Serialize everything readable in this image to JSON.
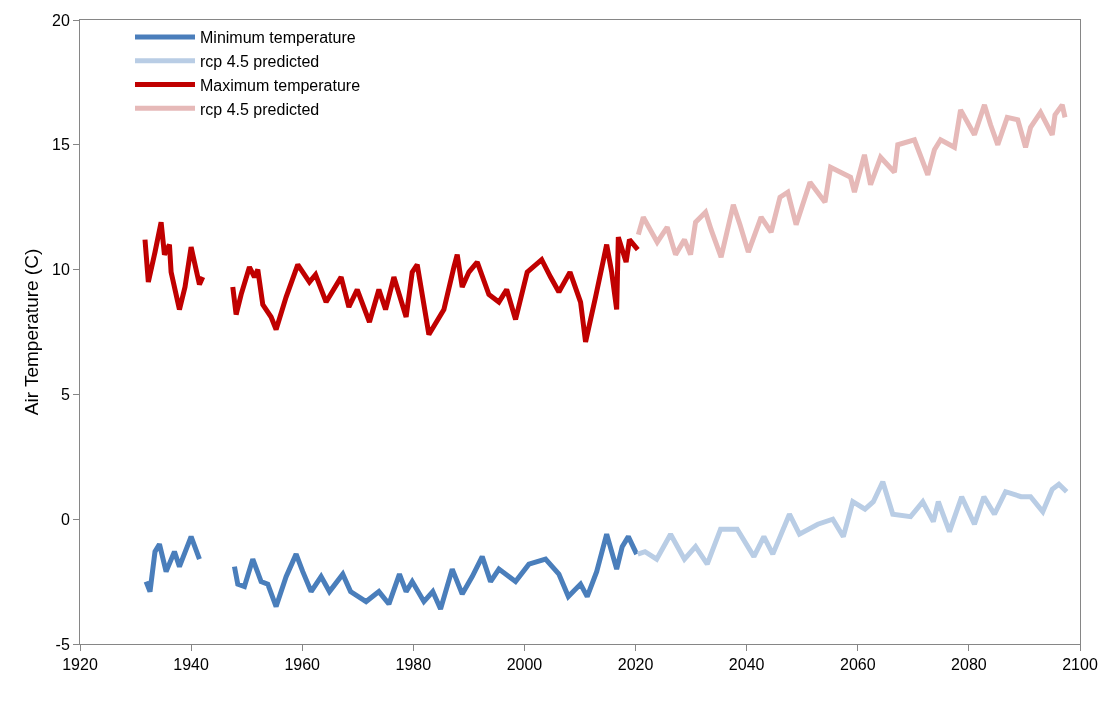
{
  "chart_data": {
    "type": "line",
    "ylabel": "Air Temperature (C)",
    "xlim": [
      1920,
      2100
    ],
    "xticks": [
      1920,
      1940,
      1960,
      1980,
      2000,
      2020,
      2040,
      2060,
      2080,
      2100
    ],
    "ylim": [
      -5,
      20
    ],
    "yticks": [
      -5,
      0,
      5,
      10,
      15,
      20
    ],
    "grid": false,
    "legend": "top left",
    "marker": "none",
    "line_style": "solid",
    "series": [
      {
        "name": "Minimum temperature",
        "color": "#4a7ebb",
        "x": [
          1931.9,
          1932.6,
          1933.5,
          1934.3,
          1935.5,
          1937.0,
          1937.9,
          1940.0,
          1941.5,
          1945,
          1947.8,
          1948.4,
          1949.6,
          1951.1,
          1952.6,
          1953.8,
          1955.3,
          1957.1,
          1958.9,
          1960.1,
          1961.6,
          1963.4,
          1964.9,
          1967.3,
          1968.7,
          1971.5,
          1973.8,
          1975.6,
          1977.5,
          1978.7,
          1979.8,
          1981.9,
          1983.5,
          1984.9,
          1987.0,
          1988.8,
          1990.6,
          1992.4,
          1993.9,
          1995.4,
          1998.4,
          2000.8,
          2003.8,
          2006.2,
          2007.9,
          2010.1,
          2011.3,
          2013.0,
          2014.8,
          2016.6,
          2017.6,
          2018.7,
          2020.2
        ],
        "values": [
          -2.5,
          -2.9,
          -1.3,
          -1.0,
          -2.1,
          -1.3,
          -1.9,
          -0.7,
          -1.6,
          null,
          -1.9,
          -2.6,
          -2.7,
          -1.6,
          -2.5,
          -2.6,
          -3.5,
          -2.3,
          -1.4,
          -2.1,
          -2.9,
          -2.3,
          -2.9,
          -2.2,
          -2.9,
          -3.3,
          -2.9,
          -3.4,
          -2.2,
          -2.9,
          -2.5,
          -3.3,
          -2.9,
          -3.6,
          -2.0,
          -3.0,
          -2.3,
          -1.5,
          -2.5,
          -2.0,
          -2.5,
          -1.8,
          -1.6,
          -2.2,
          -3.1,
          -2.6,
          -3.1,
          -2.1,
          -0.6,
          -2.0,
          -1.1,
          -0.7,
          -1.4
        ]
      },
      {
        "name": "rcp 4.5 predicted",
        "color": "#b9cde5",
        "x": [
          2020.4,
          2021.7,
          2023.8,
          2026.3,
          2028.8,
          2030.8,
          2032.9,
          2035.3,
          2038.3,
          2041.3,
          2043.1,
          2044.7,
          2047.7,
          2049.5,
          2052.8,
          2055.5,
          2057.4,
          2059.1,
          2061.3,
          2062.8,
          2064.5,
          2066.3,
          2069.5,
          2071.7,
          2073.6,
          2074.5,
          2076.5,
          2078.7,
          2081.0,
          2082.7,
          2084.6,
          2086.6,
          2089.4,
          2091.1,
          2093.3,
          2095.0,
          2096.2,
          2097.6
        ],
        "values": [
          -1.4,
          -1.3,
          -1.6,
          -0.6,
          -1.6,
          -1.1,
          -1.8,
          -0.4,
          -0.4,
          -1.5,
          -0.7,
          -1.4,
          0.2,
          -0.6,
          -0.2,
          0.0,
          -0.7,
          0.7,
          0.4,
          0.7,
          1.5,
          0.2,
          0.1,
          0.7,
          -0.1,
          0.7,
          -0.5,
          0.9,
          -0.2,
          0.9,
          0.2,
          1.1,
          0.9,
          0.9,
          0.3,
          1.2,
          1.4,
          1.1
        ]
      },
      {
        "name": "Maximum temperature",
        "color": "#c00000",
        "x": [
          1931.7,
          1932.3,
          1933.5,
          1934.6,
          1935.2,
          1936.1,
          1936.4,
          1937.9,
          1938.9,
          1940.0,
          1941.5,
          1942.1,
          1945,
          1947.5,
          1948.1,
          1949.0,
          1950.5,
          1951.4,
          1952.0,
          1952.9,
          1954.4,
          1955.3,
          1957.1,
          1959.2,
          1961.3,
          1962.4,
          1964.3,
          1967.0,
          1968.4,
          1969.9,
          1972.1,
          1973.8,
          1975.0,
          1976.5,
          1978.7,
          1979.8,
          1980.7,
          1982.8,
          1985.5,
          1987.3,
          1987.9,
          1988.8,
          1990.0,
          1991.5,
          1993.6,
          1995.4,
          1996.8,
          1998.4,
          2000.5,
          2003.1,
          2004.7,
          2006.2,
          2008.2,
          2010.1,
          2011.0,
          2012.8,
          2014.8,
          2015.7,
          2016.6,
          2016.9,
          2018.3,
          2018.9,
          2020.4
        ],
        "values": [
          11.2,
          9.5,
          10.7,
          11.9,
          10.6,
          11.0,
          9.9,
          8.4,
          9.3,
          10.9,
          9.4,
          9.7,
          null,
          9.3,
          8.2,
          9.0,
          10.1,
          9.7,
          10.0,
          8.6,
          8.1,
          7.6,
          8.9,
          10.2,
          9.5,
          9.8,
          8.7,
          9.7,
          8.5,
          9.2,
          7.9,
          9.2,
          8.4,
          9.7,
          8.1,
          9.9,
          10.2,
          7.4,
          8.4,
          10.1,
          10.6,
          9.3,
          9.9,
          10.3,
          9.0,
          8.7,
          9.2,
          8.0,
          9.9,
          10.4,
          9.7,
          9.1,
          9.9,
          8.7,
          7.1,
          8.9,
          11.0,
          9.9,
          8.4,
          11.3,
          10.3,
          11.2,
          10.8
        ]
      },
      {
        "name": "rcp 4.5 predicted",
        "color": "#e6b9b8",
        "x": [
          2020.5,
          2021.4,
          2023.9,
          2025.7,
          2027.2,
          2028.8,
          2029.9,
          2030.8,
          2032.6,
          2033.6,
          2035.4,
          2037.6,
          2038.8,
          2040.3,
          2042.6,
          2044.4,
          2046.0,
          2047.4,
          2048.9,
          2051.4,
          2054.1,
          2055.1,
          2058.7,
          2059.4,
          2061.2,
          2062.3,
          2064.1,
          2066.6,
          2067.2,
          2070.2,
          2072.6,
          2073.8,
          2074.9,
          2077.4,
          2078.5,
          2081.0,
          2082.8,
          2083.9,
          2085.2,
          2086.9,
          2088.8,
          2090.2,
          2091.1,
          2092.9,
          2095.0,
          2095.5,
          2096.8,
          2097.3
        ],
        "values": [
          11.4,
          12.1,
          11.1,
          11.7,
          10.6,
          11.2,
          10.6,
          11.9,
          12.3,
          11.6,
          10.5,
          12.6,
          11.8,
          10.7,
          12.1,
          11.5,
          12.9,
          13.1,
          11.8,
          13.5,
          12.7,
          14.1,
          13.7,
          13.1,
          14.6,
          13.4,
          14.5,
          13.9,
          15.0,
          15.2,
          13.8,
          14.8,
          15.2,
          14.9,
          16.4,
          15.4,
          16.6,
          15.8,
          15.0,
          16.1,
          16.0,
          14.9,
          15.7,
          16.3,
          15.4,
          16.2,
          16.6,
          16.1
        ]
      }
    ]
  }
}
